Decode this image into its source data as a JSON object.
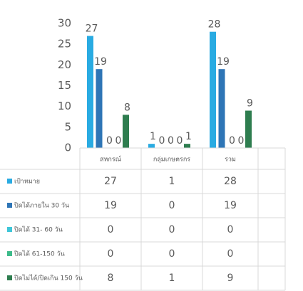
{
  "chart_data": {
    "type": "bar",
    "categories": [
      "สหกรณ์",
      "กลุ่มเกษตรกร",
      "รวม"
    ],
    "series": [
      {
        "name": "เป้าหมาย",
        "color": "#29abe2",
        "values": [
          27,
          1,
          28
        ]
      },
      {
        "name": "ปิดได้ภายใน 30 วัน",
        "color": "#2e75b6",
        "values": [
          19,
          0,
          19
        ]
      },
      {
        "name": "ปิดได้ 31- 60 วัน",
        "color": "#3fc6d8",
        "values": [
          0,
          0,
          0
        ]
      },
      {
        "name": "ปิดได้ 61-150 วัน",
        "color": "#3dbb8a",
        "values": [
          0,
          0,
          0
        ]
      },
      {
        "name": "ปิดไม่ได้/ปิดเกิน 150 วัน",
        "color": "#2e7d4f",
        "values": [
          8,
          1,
          9
        ]
      }
    ],
    "ylim": [
      0,
      30
    ],
    "yticks": [
      0,
      5,
      10,
      15,
      20,
      25,
      30
    ],
    "grid": false,
    "data_table": true
  }
}
